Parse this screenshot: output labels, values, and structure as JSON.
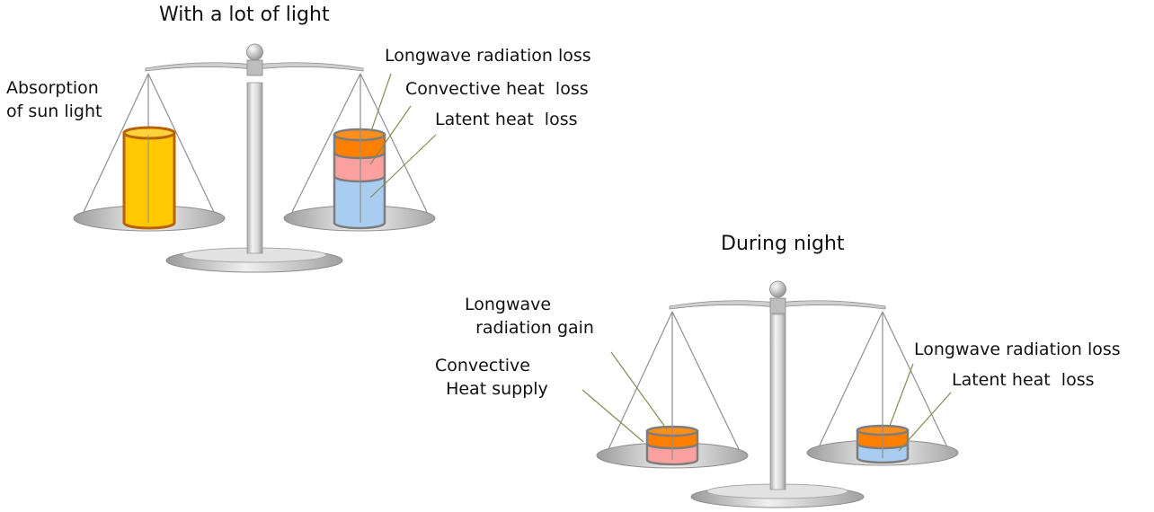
{
  "day": {
    "title": "With a lot of light",
    "left_label": "Absorption\nof sun light",
    "right_labels": {
      "longwave": "Longwave radiation loss",
      "convective": "Convective heat  loss",
      "latent": "Latent heat  loss"
    }
  },
  "night": {
    "title": "During night",
    "left_labels": {
      "longwave": "Longwave\n  radiation gain",
      "convective": "Convective\n  Heat supply"
    },
    "right_labels": {
      "longwave": "Longwave radiation loss",
      "latent": "Latent heat  loss"
    }
  },
  "colors": {
    "sunlight": "#ffc800",
    "sunlight_rim": "#b8620a",
    "longwave": "#ff7f00",
    "convective": "#fca0a0",
    "latent": "#a9cdf0",
    "scale_metal": "#c8c8c8",
    "leader_line": "#8a8a55"
  }
}
